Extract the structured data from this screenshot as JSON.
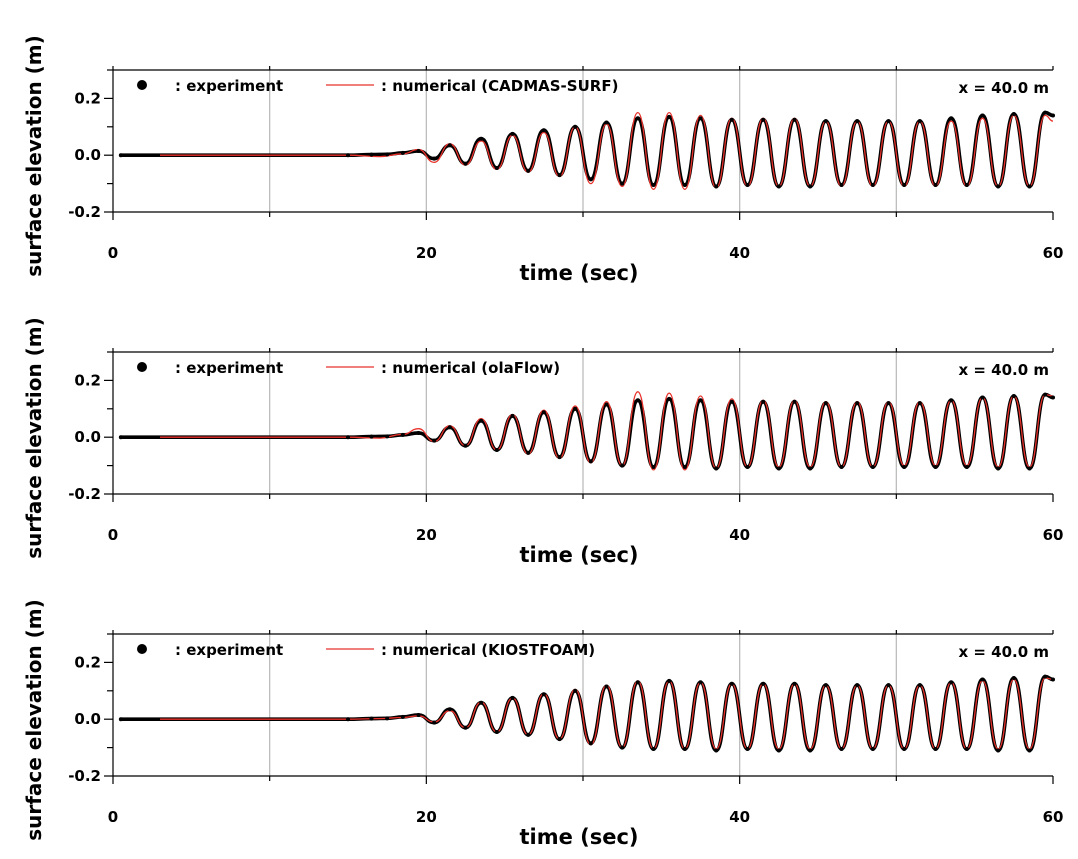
{
  "colors": {
    "experiment": "#000000",
    "numerical": "#e8312a",
    "grid": "#bdbdbd",
    "axis": "#000000"
  },
  "chart_data": [
    {
      "type": "line",
      "xlabel": "time (sec)",
      "ylabel": "surface elevation (m)",
      "xlim": [
        0,
        60
      ],
      "ylim": [
        -0.2,
        0.3
      ],
      "xticks": [
        {
          "v": 0,
          "label": "0"
        },
        {
          "v": 20,
          "label": "20"
        },
        {
          "v": 40,
          "label": "40"
        },
        {
          "v": 60,
          "label": "60"
        }
      ],
      "yticks": [
        {
          "v": 0.2,
          "label": "0.2"
        },
        {
          "v": 0.0,
          "label": "0.0"
        },
        {
          "v": -0.2,
          "label": "-0.2"
        }
      ],
      "annotation": "x = 40.0 m",
      "grid": true,
      "legend": "top-left",
      "series": [
        {
          "name": ": experiment",
          "style": "marker-line",
          "x": [
            0.5,
            15,
            16.5,
            17.5,
            18.5,
            19.5,
            20.5,
            21.5,
            22.5,
            23.5,
            24.5,
            25.5,
            26.5,
            27.5,
            28.5,
            29.5,
            30.5,
            31.5,
            32.5,
            33.5,
            34.5,
            35.5,
            36.5,
            37.5,
            38.5,
            39.5,
            40.5,
            41.5,
            42.5,
            43.5,
            44.5,
            45.5,
            46.5,
            47.5,
            48.5,
            49.5,
            50.5,
            51.5,
            52.5,
            53.5,
            54.5,
            55.5,
            56.5,
            57.5,
            58.5,
            59.5,
            60
          ],
          "y": [
            0,
            0,
            0.002,
            0.003,
            0.008,
            0.015,
            -0.012,
            0.035,
            -0.03,
            0.058,
            -0.045,
            0.075,
            -0.055,
            0.088,
            -0.07,
            0.1,
            -0.085,
            0.115,
            -0.1,
            0.13,
            -0.105,
            0.135,
            -0.105,
            0.13,
            -0.11,
            0.125,
            -0.105,
            0.125,
            -0.11,
            0.125,
            -0.11,
            0.12,
            -0.105,
            0.12,
            -0.105,
            0.12,
            -0.105,
            0.12,
            -0.105,
            0.13,
            -0.105,
            0.14,
            -0.11,
            0.145,
            -0.11,
            0.15,
            0.14
          ]
        },
        {
          "name": ": numerical (CADMAS-SURF)",
          "style": "line",
          "x": [
            3,
            15,
            17,
            18.5,
            19.5,
            20.5,
            21.5,
            22.5,
            23.5,
            24.5,
            25.5,
            26.5,
            27.5,
            28.5,
            29.5,
            30.5,
            31.5,
            32.5,
            33.5,
            34.5,
            35.5,
            36.5,
            37.5,
            38.5,
            39.5,
            40.5,
            41.5,
            42.5,
            43.5,
            44.5,
            45.5,
            46.5,
            47.5,
            48.5,
            49.5,
            50.5,
            51.5,
            52.5,
            53.5,
            54.5,
            55.5,
            56.5,
            57.5,
            58.5,
            59.5,
            60
          ],
          "y": [
            0,
            0,
            -0.005,
            0.005,
            0.02,
            -0.025,
            0.04,
            -0.035,
            0.05,
            -0.05,
            0.07,
            -0.06,
            0.08,
            -0.075,
            0.1,
            -0.1,
            0.11,
            -0.11,
            0.15,
            -0.12,
            0.15,
            -0.12,
            0.14,
            -0.115,
            0.13,
            -0.11,
            0.13,
            -0.11,
            0.13,
            -0.11,
            0.12,
            -0.11,
            0.12,
            -0.11,
            0.12,
            -0.11,
            0.12,
            -0.11,
            0.12,
            -0.11,
            0.13,
            -0.11,
            0.14,
            -0.11,
            0.14,
            0.12
          ]
        }
      ]
    },
    {
      "type": "line",
      "xlabel": "time (sec)",
      "ylabel": "surface elevation (m)",
      "xlim": [
        0,
        60
      ],
      "ylim": [
        -0.2,
        0.3
      ],
      "xticks": [
        {
          "v": 0,
          "label": "0"
        },
        {
          "v": 20,
          "label": "20"
        },
        {
          "v": 40,
          "label": "40"
        },
        {
          "v": 60,
          "label": "60"
        }
      ],
      "yticks": [
        {
          "v": 0.2,
          "label": "0.2"
        },
        {
          "v": 0.0,
          "label": "0.0"
        },
        {
          "v": -0.2,
          "label": "-0.2"
        }
      ],
      "annotation": "x = 40.0 m",
      "grid": true,
      "legend": "top-left",
      "series": [
        {
          "name": ": experiment",
          "style": "marker-line",
          "x": [
            0.5,
            15,
            16.5,
            17.5,
            18.5,
            19.5,
            20.5,
            21.5,
            22.5,
            23.5,
            24.5,
            25.5,
            26.5,
            27.5,
            28.5,
            29.5,
            30.5,
            31.5,
            32.5,
            33.5,
            34.5,
            35.5,
            36.5,
            37.5,
            38.5,
            39.5,
            40.5,
            41.5,
            42.5,
            43.5,
            44.5,
            45.5,
            46.5,
            47.5,
            48.5,
            49.5,
            50.5,
            51.5,
            52.5,
            53.5,
            54.5,
            55.5,
            56.5,
            57.5,
            58.5,
            59.5,
            60
          ],
          "y": [
            0,
            0,
            0.002,
            0.003,
            0.008,
            0.015,
            -0.012,
            0.035,
            -0.03,
            0.058,
            -0.045,
            0.075,
            -0.055,
            0.088,
            -0.07,
            0.1,
            -0.085,
            0.115,
            -0.1,
            0.13,
            -0.105,
            0.135,
            -0.105,
            0.13,
            -0.11,
            0.125,
            -0.105,
            0.125,
            -0.11,
            0.125,
            -0.11,
            0.12,
            -0.105,
            0.12,
            -0.105,
            0.12,
            -0.105,
            0.12,
            -0.105,
            0.13,
            -0.105,
            0.14,
            -0.11,
            0.145,
            -0.11,
            0.15,
            0.14
          ]
        },
        {
          "name": ": numerical (olaFlow)",
          "style": "line",
          "x": [
            3,
            15,
            17,
            18.5,
            19.5,
            20.5,
            21.5,
            22.5,
            23.5,
            24.5,
            25.5,
            26.5,
            27.5,
            28.5,
            29.5,
            30.5,
            31.5,
            32.5,
            33.5,
            34.5,
            35.5,
            36.5,
            37.5,
            38.5,
            39.5,
            40.5,
            41.5,
            42.5,
            43.5,
            44.5,
            45.5,
            46.5,
            47.5,
            48.5,
            49.5,
            50.5,
            51.5,
            52.5,
            53.5,
            54.5,
            55.5,
            56.5,
            57.5,
            58.5,
            59.5,
            60
          ],
          "y": [
            0,
            0,
            -0.003,
            0.01,
            0.03,
            -0.015,
            0.04,
            -0.03,
            0.065,
            -0.045,
            0.08,
            -0.06,
            0.095,
            -0.075,
            0.11,
            -0.09,
            0.125,
            -0.1,
            0.16,
            -0.115,
            0.155,
            -0.115,
            0.145,
            -0.11,
            0.135,
            -0.105,
            0.13,
            -0.105,
            0.13,
            -0.105,
            0.125,
            -0.105,
            0.125,
            -0.105,
            0.125,
            -0.1,
            0.125,
            -0.1,
            0.13,
            -0.1,
            0.14,
            -0.105,
            0.145,
            -0.105,
            0.15,
            0.145
          ]
        }
      ]
    },
    {
      "type": "line",
      "xlabel": "time (sec)",
      "ylabel": "surface elevation (m)",
      "xlim": [
        0,
        60
      ],
      "ylim": [
        -0.2,
        0.3
      ],
      "xticks": [
        {
          "v": 0,
          "label": "0"
        },
        {
          "v": 20,
          "label": "20"
        },
        {
          "v": 40,
          "label": "40"
        },
        {
          "v": 60,
          "label": "60"
        }
      ],
      "yticks": [
        {
          "v": 0.2,
          "label": "0.2"
        },
        {
          "v": 0.0,
          "label": "0.0"
        },
        {
          "v": -0.2,
          "label": "-0.2"
        }
      ],
      "annotation": "x = 40.0 m",
      "grid": true,
      "legend": "top-left",
      "series": [
        {
          "name": ": experiment",
          "style": "marker-line",
          "x": [
            0.5,
            15,
            16.5,
            17.5,
            18.5,
            19.5,
            20.5,
            21.5,
            22.5,
            23.5,
            24.5,
            25.5,
            26.5,
            27.5,
            28.5,
            29.5,
            30.5,
            31.5,
            32.5,
            33.5,
            34.5,
            35.5,
            36.5,
            37.5,
            38.5,
            39.5,
            40.5,
            41.5,
            42.5,
            43.5,
            44.5,
            45.5,
            46.5,
            47.5,
            48.5,
            49.5,
            50.5,
            51.5,
            52.5,
            53.5,
            54.5,
            55.5,
            56.5,
            57.5,
            58.5,
            59.5,
            60
          ],
          "y": [
            0,
            0,
            0.002,
            0.003,
            0.008,
            0.015,
            -0.012,
            0.035,
            -0.03,
            0.058,
            -0.045,
            0.075,
            -0.055,
            0.088,
            -0.07,
            0.1,
            -0.085,
            0.115,
            -0.1,
            0.13,
            -0.105,
            0.135,
            -0.105,
            0.13,
            -0.11,
            0.125,
            -0.105,
            0.125,
            -0.11,
            0.125,
            -0.11,
            0.12,
            -0.105,
            0.12,
            -0.105,
            0.12,
            -0.105,
            0.12,
            -0.105,
            0.13,
            -0.105,
            0.14,
            -0.11,
            0.145,
            -0.11,
            0.15,
            0.14
          ]
        },
        {
          "name": ": numerical (KIOSTFOAM)",
          "style": "line",
          "x": [
            3,
            15,
            17,
            18.5,
            19.5,
            20.5,
            21.5,
            22.5,
            23.5,
            24.5,
            25.5,
            26.5,
            27.5,
            28.5,
            29.5,
            30.5,
            31.5,
            32.5,
            33.5,
            34.5,
            35.5,
            36.5,
            37.5,
            38.5,
            39.5,
            40.5,
            41.5,
            42.5,
            43.5,
            44.5,
            45.5,
            46.5,
            47.5,
            48.5,
            49.5,
            50.5,
            51.5,
            52.5,
            53.5,
            54.5,
            55.5,
            56.5,
            57.5,
            58.5,
            59.5,
            60
          ],
          "y": [
            0,
            0,
            0.002,
            0.006,
            0.012,
            -0.01,
            0.03,
            -0.03,
            0.06,
            -0.045,
            0.075,
            -0.055,
            0.09,
            -0.07,
            0.105,
            -0.09,
            0.12,
            -0.1,
            0.135,
            -0.105,
            0.135,
            -0.105,
            0.13,
            -0.105,
            0.125,
            -0.105,
            0.125,
            -0.105,
            0.125,
            -0.105,
            0.12,
            -0.105,
            0.12,
            -0.105,
            0.12,
            -0.105,
            0.12,
            -0.105,
            0.13,
            -0.105,
            0.135,
            -0.105,
            0.14,
            -0.105,
            0.145,
            0.14
          ]
        }
      ]
    }
  ]
}
